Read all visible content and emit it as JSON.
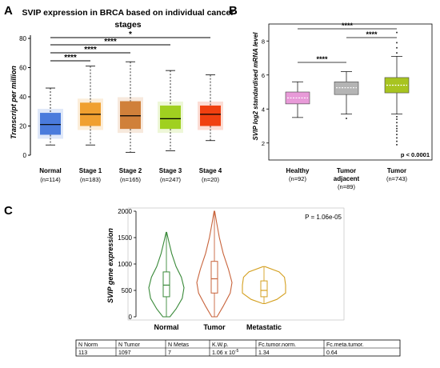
{
  "panels": {
    "a": {
      "letter": "A",
      "title_line1": "SVIP expression in BRCA based on individual cancer",
      "title_line2": "stages"
    },
    "b": {
      "letter": "B"
    },
    "c": {
      "letter": "C"
    }
  },
  "chart_data": [
    {
      "id": "panel-a",
      "type": "box",
      "title": "SVIP expression in BRCA based on individual cancer stages",
      "ylabel": "Transcript per million",
      "ylim": [
        0,
        80
      ],
      "yticks": [
        "0",
        "20",
        "40",
        "60",
        "80"
      ],
      "grid": false,
      "categories": [
        "Normal",
        "Stage 1",
        "Stage 2",
        "Stage 3",
        "Stage 4"
      ],
      "counts": [
        "(n=114)",
        "(n=183)",
        "(n=165)",
        "(n=247)",
        "(n=20)"
      ],
      "colors": [
        "#4a7bdc",
        "#f0a030",
        "#d0803a",
        "#a0d020",
        "#f04010"
      ],
      "boxes": [
        {
          "min": 7,
          "q1": 14,
          "median": 21,
          "q3": 29,
          "max": 46
        },
        {
          "min": 7,
          "q1": 20,
          "median": 28,
          "q3": 36,
          "max": 61
        },
        {
          "min": 2,
          "q1": 18,
          "median": 27,
          "q3": 37,
          "max": 64
        },
        {
          "min": 3,
          "q1": 18,
          "median": 25,
          "q3": 34,
          "max": 58
        },
        {
          "min": 10,
          "q1": 20,
          "median": 28,
          "q3": 34,
          "max": 55
        }
      ],
      "significance": [
        {
          "from": 0,
          "to": 4,
          "label": "*"
        },
        {
          "from": 0,
          "to": 3,
          "label": "****"
        },
        {
          "from": 0,
          "to": 2,
          "label": "****"
        },
        {
          "from": 0,
          "to": 1,
          "label": "****"
        }
      ]
    },
    {
      "id": "panel-b",
      "type": "box",
      "ylabel": "SVIP log2 standardised mRNA level",
      "ylim": [
        1,
        9
      ],
      "yticks": [
        "2",
        "4",
        "6",
        "8"
      ],
      "grid": false,
      "categories": [
        "Healthy",
        "Tumor adjacent",
        "Tumor"
      ],
      "category_lines": [
        [
          "Healthy"
        ],
        [
          "Tumor",
          "adjacent"
        ],
        [
          "Tumor"
        ]
      ],
      "counts": [
        "(n=92)",
        "(n=89)",
        "(n=743)"
      ],
      "colors": [
        "#e89ad8",
        "#b4b4b4",
        "#a8c420"
      ],
      "boxes": [
        {
          "min": 3.5,
          "q1": 4.3,
          "median": 4.65,
          "q3": 5.0,
          "max": 5.6
        },
        {
          "min": 3.7,
          "q1": 4.85,
          "median": 5.25,
          "q3": 5.6,
          "max": 6.2
        },
        {
          "min": 3.7,
          "q1": 4.95,
          "median": 5.4,
          "q3": 5.85,
          "max": 7.1
        }
      ],
      "p_value": "p < 0.0001",
      "significance": [
        {
          "from": 0,
          "to": 2,
          "label": "****"
        },
        {
          "from": 0,
          "to": 1,
          "label": "****"
        },
        {
          "from": 1,
          "to": 2,
          "label": "****"
        }
      ]
    },
    {
      "id": "panel-c",
      "type": "violin",
      "ylabel": "SVIP gene expression",
      "ylim": [
        0,
        2000
      ],
      "yticks": [
        "0",
        "500",
        "1000",
        "1500",
        "2000"
      ],
      "grid": false,
      "categories": [
        "Normal",
        "Tumor",
        "Metastatic"
      ],
      "colors": [
        "#3a8a3a",
        "#c8643c",
        "#d4a020"
      ],
      "boxes": [
        {
          "min": 0,
          "q1": 380,
          "median": 600,
          "q3": 850,
          "max": 1600
        },
        {
          "min": 0,
          "q1": 450,
          "median": 720,
          "q3": 1050,
          "max": 2000
        },
        {
          "min": 250,
          "q1": 380,
          "median": 500,
          "q3": 680,
          "max": 950
        }
      ],
      "p_value": "P = 1.06e-05"
    }
  ],
  "stats_table": {
    "headers": [
      "N Norm",
      "N Tumor",
      "N Metas",
      "K.W.p.",
      "Fc.tumor.norm.",
      "Fc.meta.tumor."
    ],
    "rows": [
      [
        "113",
        "1097",
        "7",
        "1.06 x 10",
        "1.34",
        "0.64"
      ]
    ],
    "kwp_exponent": "-5"
  }
}
